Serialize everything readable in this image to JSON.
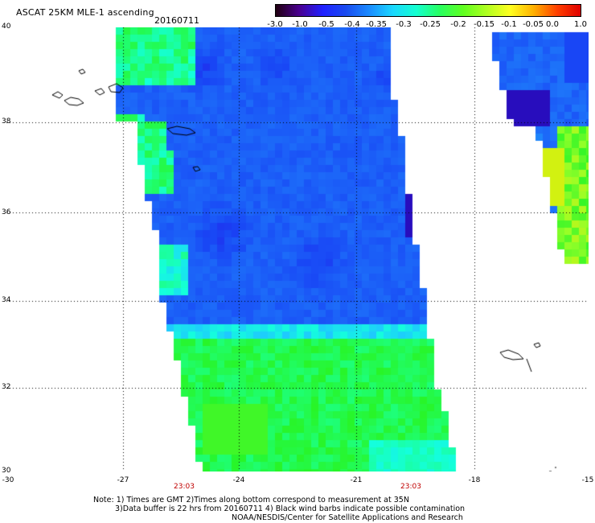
{
  "header": {
    "title": "ASCAT 25KM MLE-1 ascending",
    "date": "20160711"
  },
  "colorbar": {
    "labels": [
      "-3.0",
      "-1.0",
      "-0.5",
      "-0.4",
      "-0.35",
      "-0.3",
      "-0.25",
      "-0.2",
      "-0.15",
      "-0.1",
      "-0.05",
      "0.0",
      "1.0"
    ],
    "colors": [
      "#200010",
      "#4a0090",
      "#2020ff",
      "#1a4cf0",
      "#1a8cff",
      "#1ad8ff",
      "#14ffd0",
      "#28ff60",
      "#60ff20",
      "#b0ff20",
      "#ffff20",
      "#ffb000",
      "#ff4000",
      "#e00000"
    ]
  },
  "axes": {
    "y_labels": [
      "40",
      "38",
      "36",
      "34",
      "32",
      "30"
    ],
    "x_labels": [
      "-30",
      "-27",
      "-24",
      "-21",
      "-18",
      "-15"
    ],
    "time_labels": [
      "23:03",
      "23:03"
    ]
  },
  "notes": {
    "line1": "Note: 1) Times are GMT 2)Times along bottom correspond to measurement at 35N",
    "line2": "3)Data buffer is 22 hrs from 20160711 4) Black wind barbs indicate possible contamination",
    "line3": "NOAA/NESDIS/Center for Satellite Applications and Research"
  }
}
